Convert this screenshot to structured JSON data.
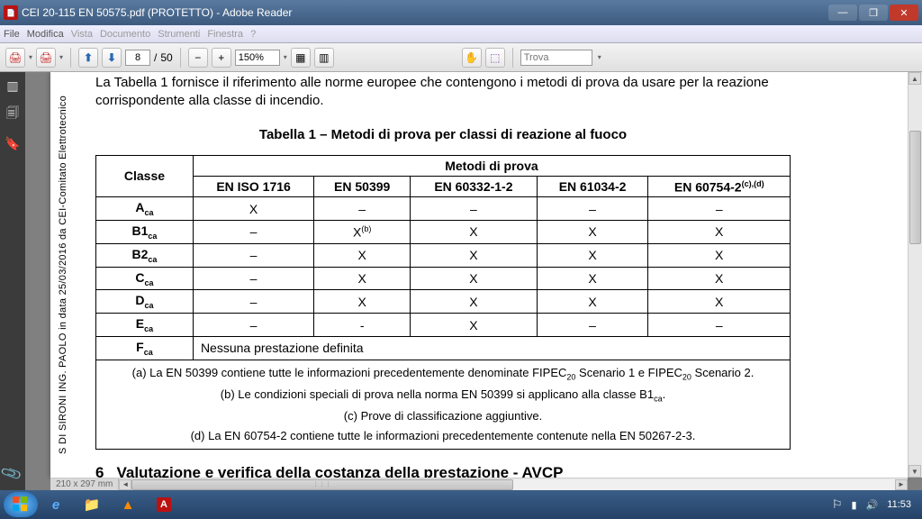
{
  "window": {
    "title": "CEI 20-115 EN 50575.pdf (PROTETTO) - Adobe Reader",
    "min": "—",
    "max": "❐",
    "close": "✕"
  },
  "menu": {
    "file": "File",
    "modifica": "Modifica",
    "vista": "Vista",
    "documento": "Documento",
    "strumenti": "Strumenti",
    "finestra": "Finestra",
    "help": "?"
  },
  "toolbar": {
    "page_current": "8",
    "page_sep": "/",
    "page_total": "50",
    "zoom": "150%",
    "search_placeholder": "Trova",
    "icons": {
      "print": "🖨",
      "printer2": "🖨",
      "prev": "⬆",
      "next": "⬇",
      "minus": "−",
      "plus": "+",
      "fit1": "▦",
      "fit2": "▥",
      "hand": "✋",
      "select": "⬚",
      "dd": "▾"
    }
  },
  "sidepanel": {
    "thumb": "▥",
    "pages": "🗐",
    "book": "🔖",
    "attach": "📎"
  },
  "page": {
    "sidetext": "S DI SIRONI ING. PAOLO in data 25/03/2016 da CEI-Comitato Elettrotecnico",
    "intro": "La Tabella 1 fornisce il riferimento alle norme europee che contengono i metodi di prova da usare per la reazione corrispondente alla classe di incendio.",
    "tabletitle": "Tabella 1 – Metodi di prova per classi di reazione al fuoco",
    "headers": {
      "classe": "Classe",
      "metodi": "Metodi di prova",
      "c1": "EN ISO 1716",
      "c2": "EN 50399",
      "c3": "EN 60332-1-2",
      "c4": "EN 61034-2",
      "c5": "EN 60754-2",
      "c5sup": "(c),(d)"
    },
    "rows": [
      {
        "cls": "A",
        "sub": "ca",
        "v": [
          "X",
          "–",
          "–",
          "–",
          "–"
        ]
      },
      {
        "cls": "B1",
        "sub": "ca",
        "v": [
          "–",
          "X(b)",
          "X",
          "X",
          "X"
        ],
        "xb": true
      },
      {
        "cls": "B2",
        "sub": "ca",
        "v": [
          "–",
          "X",
          "X",
          "X",
          "X"
        ]
      },
      {
        "cls": "C",
        "sub": "ca",
        "v": [
          "–",
          "X",
          "X",
          "X",
          "X"
        ]
      },
      {
        "cls": "D",
        "sub": "ca",
        "v": [
          "–",
          "X",
          "X",
          "X",
          "X"
        ]
      },
      {
        "cls": "E",
        "sub": "ca",
        "v": [
          "–",
          "-",
          "X",
          "–",
          "–"
        ]
      }
    ],
    "frow": {
      "cls": "F",
      "sub": "ca",
      "text": "Nessuna prestazione definita"
    },
    "notes": {
      "a_pre": "(a) La EN 50399 contiene tutte le informazioni precedentemente denominate FIPEC",
      "a_mid": " Scenario 1 e FIPEC",
      "a_post": " Scenario 2.",
      "sub20": "20",
      "b_pre": "(b) Le condizioni speciali di prova nella norma EN 50399 si applicano alla classe B1",
      "b_post": ".",
      "subca": "ca",
      "c": "(c) Prove di classificazione aggiuntive.",
      "d": "(d) La EN 60754-2 contiene tutte le informazioni precedentemente contenute nella EN 50267-2-3."
    },
    "section6": {
      "num": "6",
      "title": "Valutazione e verifica della costanza della prestazione - AVCP"
    },
    "pagesize": "210 x 297 mm"
  },
  "scroll": {
    "left": "◄",
    "right": "►",
    "up": "▲",
    "down": "▼",
    "grip": "⋮⋮⋮"
  },
  "taskbar": {
    "clock": "11:53",
    "flag": "⚐",
    "net": "▮",
    "snd": "🔊",
    "ie": "e",
    "folder": "📁",
    "vlc": "▲",
    "pdf": "A"
  }
}
